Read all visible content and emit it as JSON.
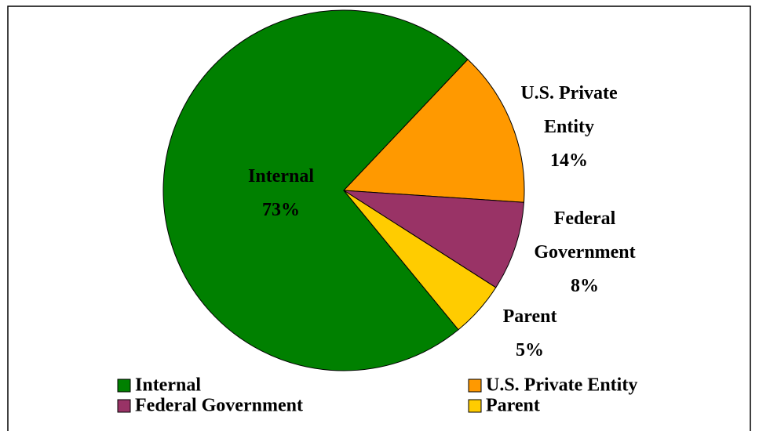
{
  "chart_data": {
    "type": "pie",
    "categories": [
      "Internal",
      "U.S. Private Entity",
      "Federal Government",
      "Parent"
    ],
    "values": [
      73,
      14,
      8,
      5
    ],
    "value_labels": [
      "73%",
      "14%",
      "8%",
      "5%"
    ],
    "colors": [
      "#008000",
      "#ff9900",
      "#993366",
      "#ffcc00"
    ],
    "legend": "bottom"
  }
}
